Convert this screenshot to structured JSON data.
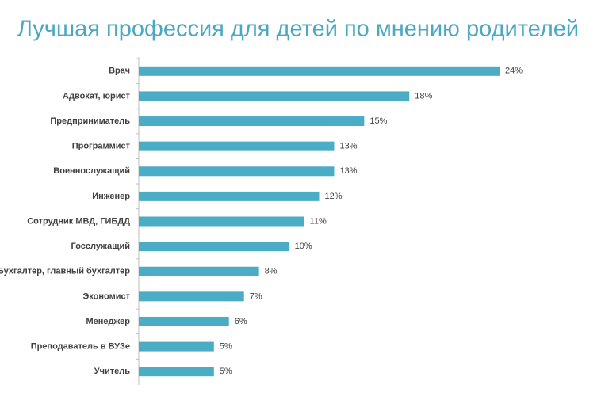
{
  "chart_data": {
    "type": "bar",
    "orientation": "horizontal",
    "title": "Лучшая профессия для детей по мнению родителей",
    "categories": [
      "Врач",
      "Адвокат, юрист",
      "Предприниматель",
      "Программист",
      "Военнослужащий",
      "Инженер",
      "Сотрудник МВД,  ГИБДД",
      "Госслужащий",
      "Бухгалтер, главный бухгалтер",
      "Экономист",
      "Менеджер",
      "Преподаватель в ВУЗе",
      "Учитель"
    ],
    "values": [
      24,
      18,
      15,
      13,
      13,
      12,
      11,
      10,
      8,
      7,
      6,
      5,
      5
    ],
    "value_labels": [
      "24%",
      "18%",
      "15%",
      "13%",
      "13%",
      "12%",
      "11%",
      "10%",
      "8%",
      "7%",
      "6%",
      "5%",
      "5%"
    ],
    "color": "#4bacc6"
  }
}
